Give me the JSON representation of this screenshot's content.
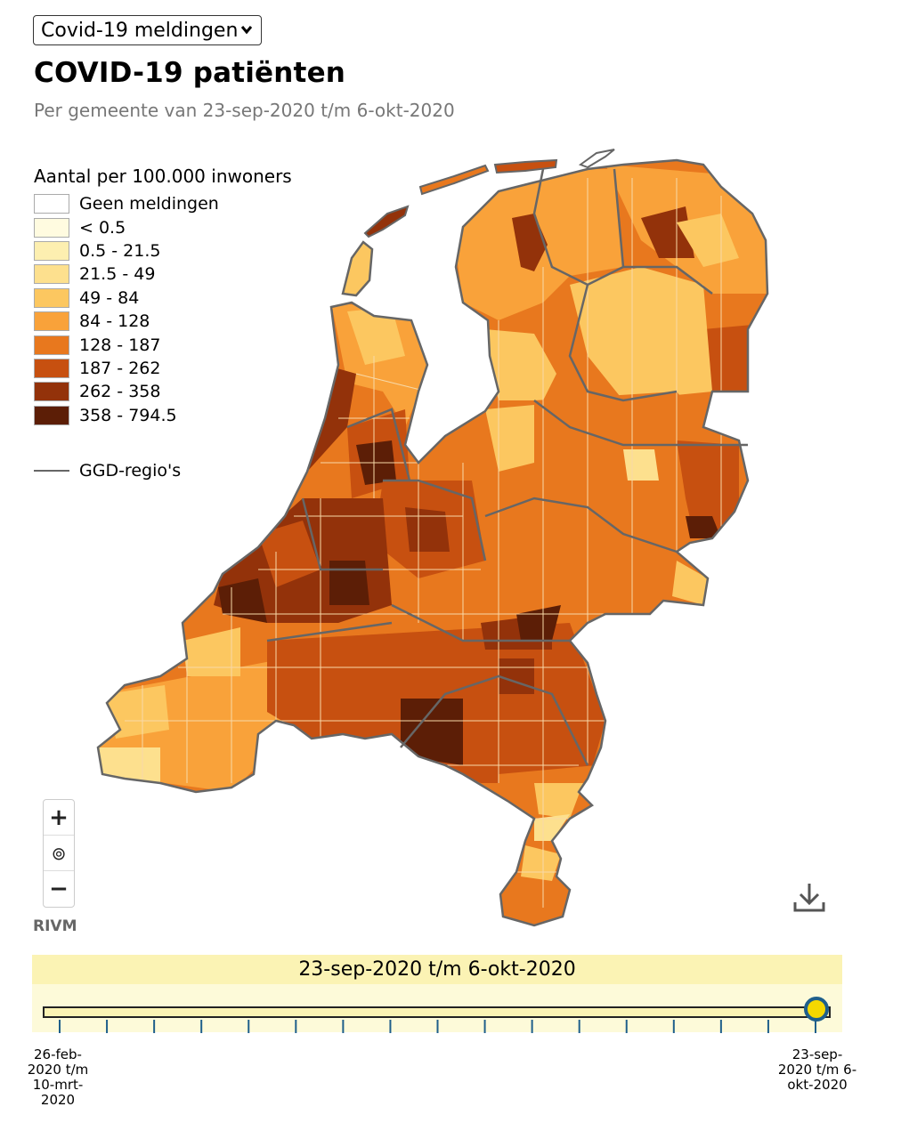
{
  "dropdown": {
    "selected": "Covid-19 meldingen"
  },
  "header": {
    "title": "COVID-19 patiënten",
    "subtitle": "Per gemeente van 23-sep-2020 t/m 6-okt-2020"
  },
  "legend": {
    "title": "Aantal per 100.000 inwoners",
    "items": [
      {
        "label": "Geen meldingen",
        "color": "#ffffff"
      },
      {
        "label": "< 0.5",
        "color": "#fffbe0"
      },
      {
        "label": "0.5 - 21.5",
        "color": "#fdefb0"
      },
      {
        "label": "21.5 - 49",
        "color": "#fde08e"
      },
      {
        "label": "49 - 84",
        "color": "#fcc760"
      },
      {
        "label": "84 - 128",
        "color": "#f9a23a"
      },
      {
        "label": "128 - 187",
        "color": "#e8781e"
      },
      {
        "label": "187 - 262",
        "color": "#c75010"
      },
      {
        "label": "262 - 358",
        "color": "#93320a"
      },
      {
        "label": "358 - 794.5",
        "color": "#5c1e06"
      }
    ],
    "line_label": "GGD-regio's"
  },
  "map": {
    "zoom_in": "+",
    "recenter": "⊚",
    "zoom_out": "−",
    "attribution": "RIVM"
  },
  "timeline": {
    "current_label": "23-sep-2020 t/m 6-okt-2020",
    "start_label": [
      "26-feb-",
      "2020 t/m",
      "10-mrt-",
      "2020"
    ],
    "end_label": [
      "23-sep-",
      "2020 t/m 6-",
      "okt-2020"
    ],
    "position": 1.0
  },
  "colors": {
    "accent": "#f5d800",
    "knob_border": "#1f5f8b",
    "timeline_bg": "#fbf3b4"
  }
}
